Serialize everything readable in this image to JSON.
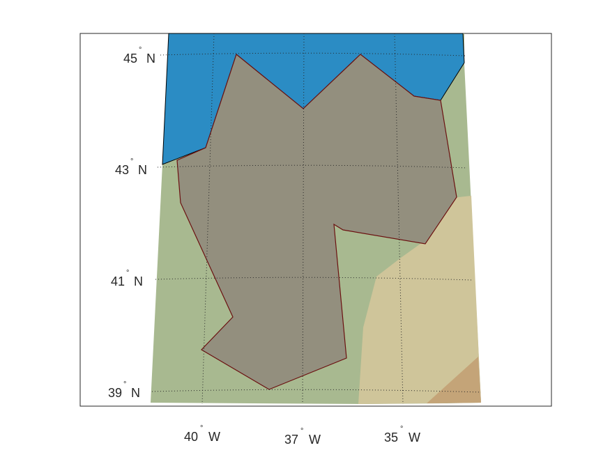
{
  "map": {
    "colors": {
      "ocean": "#2b8cc4",
      "land_lowland": "#a8b990",
      "land_upland": "#cfc59a",
      "land_highland": "#c4a478",
      "region_fill": "#938f7e",
      "region_edge": "#6b1010",
      "grid": "#262626",
      "frame": "#262626"
    },
    "lat_labels": [
      {
        "value": "45",
        "hemi": "N"
      },
      {
        "value": "43",
        "hemi": "N"
      },
      {
        "value": "41",
        "hemi": "N"
      },
      {
        "value": "39",
        "hemi": "N"
      }
    ],
    "lon_labels": [
      {
        "value": "40",
        "hemi": "W"
      },
      {
        "value": "37",
        "hemi": "W"
      },
      {
        "value": "35",
        "hemi": "W"
      }
    ],
    "grid_style": "dotted",
    "layers": [
      "ocean",
      "terrain",
      "region"
    ]
  }
}
